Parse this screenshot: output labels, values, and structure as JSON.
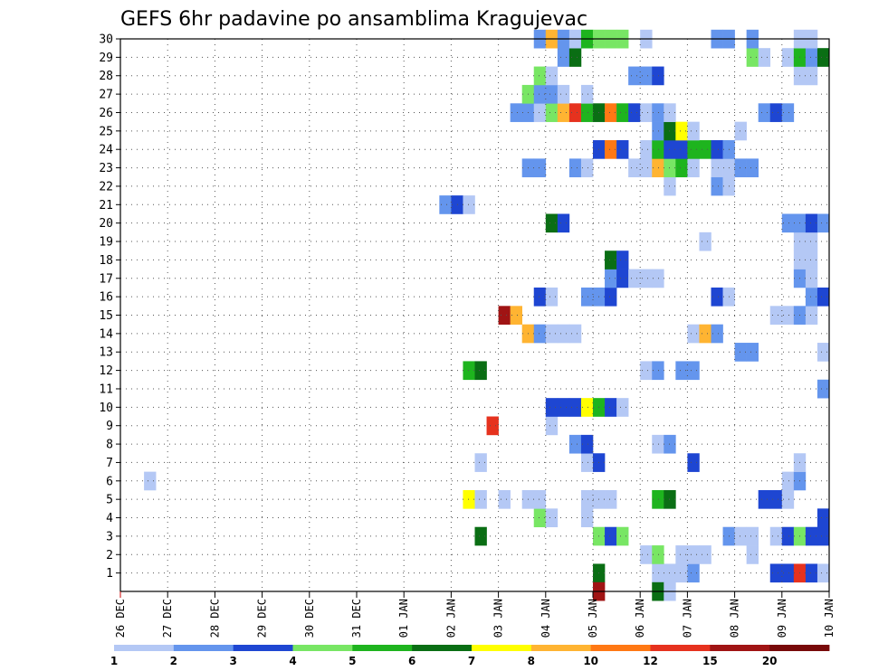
{
  "chart_data": {
    "type": "heatmap",
    "title": "GEFS 6hr padavine po ansamblima Kragujevac",
    "xlabel": "",
    "ylabel": "",
    "x_ticks": [
      "26 DEC",
      "27 DEC",
      "28 DEC",
      "29 DEC",
      "30 DEC",
      "31 DEC",
      "01 JAN",
      "02 JAN",
      "03 JAN",
      "04 JAN",
      "05 JAN",
      "06 JAN",
      "07 JAN",
      "08 JAN",
      "09 JAN",
      "10 JAN"
    ],
    "y_ticks": [
      "1",
      "2",
      "3",
      "4",
      "5",
      "6",
      "7",
      "8",
      "9",
      "10",
      "11",
      "12",
      "13",
      "14",
      "15",
      "16",
      "17",
      "18",
      "19",
      "20",
      "21",
      "22",
      "23",
      "24",
      "25",
      "26",
      "27",
      "28",
      "29",
      "30"
    ],
    "ylim": [
      0,
      30
    ],
    "x_steps_per_day": 4,
    "grid": true,
    "colorbar": {
      "labels": [
        "1",
        "2",
        "3",
        "4",
        "5",
        "6",
        "7",
        "8",
        "10",
        "12",
        "15",
        "20"
      ],
      "colors": [
        "#b4c8f5",
        "#6495ed",
        "#1e46d2",
        "#78e664",
        "#1eb41e",
        "#0a6e14",
        "#ffff00",
        "#ffb432",
        "#ff7814",
        "#e6321e",
        "#a01414",
        "#780a0a"
      ]
    },
    "cells": [
      [
        1,
        40,
        5
      ],
      [
        1,
        45,
        0
      ],
      [
        1,
        46,
        0
      ],
      [
        1,
        47,
        0
      ],
      [
        1,
        48,
        1
      ],
      [
        1,
        55,
        2
      ],
      [
        1,
        56,
        2
      ],
      [
        1,
        57,
        9
      ],
      [
        1,
        58,
        2
      ],
      [
        1,
        59,
        0
      ],
      [
        0,
        40,
        10
      ],
      [
        0,
        45,
        5
      ],
      [
        0,
        46,
        0
      ],
      [
        2,
        44,
        0
      ],
      [
        2,
        45,
        3
      ],
      [
        2,
        47,
        0
      ],
      [
        2,
        48,
        0
      ],
      [
        2,
        49,
        0
      ],
      [
        2,
        53,
        0
      ],
      [
        3,
        30,
        5
      ],
      [
        3,
        40,
        3
      ],
      [
        3,
        41,
        2
      ],
      [
        3,
        42,
        3
      ],
      [
        3,
        51,
        1
      ],
      [
        3,
        52,
        0
      ],
      [
        3,
        53,
        0
      ],
      [
        3,
        55,
        0
      ],
      [
        3,
        56,
        2
      ],
      [
        3,
        57,
        3
      ],
      [
        3,
        58,
        2
      ],
      [
        3,
        59,
        2
      ],
      [
        4,
        35,
        3
      ],
      [
        4,
        36,
        0
      ],
      [
        4,
        39,
        0
      ],
      [
        4,
        59,
        2
      ],
      [
        5,
        29,
        6
      ],
      [
        5,
        30,
        0
      ],
      [
        5,
        32,
        0
      ],
      [
        5,
        34,
        0
      ],
      [
        5,
        35,
        0
      ],
      [
        5,
        39,
        0
      ],
      [
        5,
        40,
        0
      ],
      [
        5,
        41,
        0
      ],
      [
        5,
        45,
        4
      ],
      [
        5,
        46,
        5
      ],
      [
        5,
        54,
        2
      ],
      [
        5,
        55,
        2
      ],
      [
        5,
        56,
        0
      ],
      [
        6,
        2,
        0
      ],
      [
        6,
        56,
        0
      ],
      [
        6,
        57,
        1
      ],
      [
        7,
        30,
        0
      ],
      [
        7,
        39,
        0
      ],
      [
        7,
        40,
        2
      ],
      [
        7,
        48,
        2
      ],
      [
        7,
        57,
        0
      ],
      [
        8,
        38,
        1
      ],
      [
        8,
        39,
        2
      ],
      [
        8,
        45,
        0
      ],
      [
        8,
        46,
        1
      ],
      [
        9,
        31,
        9
      ],
      [
        9,
        36,
        0
      ],
      [
        10,
        36,
        2
      ],
      [
        10,
        37,
        2
      ],
      [
        10,
        38,
        2
      ],
      [
        10,
        39,
        6
      ],
      [
        10,
        40,
        4
      ],
      [
        10,
        41,
        2
      ],
      [
        10,
        42,
        0
      ],
      [
        11,
        59,
        1
      ],
      [
        12,
        29,
        4
      ],
      [
        12,
        30,
        5
      ],
      [
        12,
        44,
        0
      ],
      [
        12,
        45,
        1
      ],
      [
        12,
        47,
        1
      ],
      [
        12,
        48,
        1
      ],
      [
        13,
        52,
        1
      ],
      [
        13,
        53,
        1
      ],
      [
        13,
        59,
        0
      ],
      [
        14,
        34,
        7
      ],
      [
        14,
        35,
        1
      ],
      [
        14,
        36,
        0
      ],
      [
        14,
        37,
        0
      ],
      [
        14,
        38,
        0
      ],
      [
        14,
        48,
        0
      ],
      [
        14,
        49,
        7
      ],
      [
        14,
        50,
        1
      ],
      [
        15,
        32,
        10
      ],
      [
        15,
        33,
        7
      ],
      [
        15,
        55,
        0
      ],
      [
        15,
        56,
        0
      ],
      [
        15,
        57,
        1
      ],
      [
        15,
        58,
        0
      ],
      [
        16,
        35,
        2
      ],
      [
        16,
        36,
        0
      ],
      [
        16,
        39,
        1
      ],
      [
        16,
        40,
        1
      ],
      [
        16,
        41,
        2
      ],
      [
        16,
        50,
        2
      ],
      [
        16,
        51,
        0
      ],
      [
        16,
        58,
        1
      ],
      [
        16,
        59,
        2
      ],
      [
        17,
        41,
        1
      ],
      [
        17,
        42,
        2
      ],
      [
        17,
        43,
        0
      ],
      [
        17,
        44,
        0
      ],
      [
        17,
        45,
        0
      ],
      [
        17,
        57,
        1
      ],
      [
        17,
        58,
        0
      ],
      [
        18,
        41,
        5
      ],
      [
        18,
        42,
        2
      ],
      [
        18,
        57,
        0
      ],
      [
        18,
        58,
        0
      ],
      [
        19,
        49,
        0
      ],
      [
        19,
        57,
        0
      ],
      [
        19,
        58,
        0
      ],
      [
        20,
        36,
        5
      ],
      [
        20,
        37,
        2
      ],
      [
        20,
        56,
        1
      ],
      [
        20,
        57,
        1
      ],
      [
        20,
        58,
        2
      ],
      [
        20,
        59,
        1
      ],
      [
        21,
        27,
        1
      ],
      [
        21,
        28,
        2
      ],
      [
        21,
        29,
        0
      ],
      [
        22,
        46,
        0
      ],
      [
        22,
        50,
        1
      ],
      [
        22,
        51,
        0
      ],
      [
        23,
        34,
        1
      ],
      [
        23,
        35,
        1
      ],
      [
        23,
        38,
        1
      ],
      [
        23,
        39,
        0
      ],
      [
        23,
        43,
        0
      ],
      [
        23,
        44,
        0
      ],
      [
        23,
        45,
        7
      ],
      [
        23,
        46,
        3
      ],
      [
        23,
        47,
        4
      ],
      [
        23,
        48,
        0
      ],
      [
        23,
        50,
        0
      ],
      [
        23,
        51,
        0
      ],
      [
        23,
        52,
        1
      ],
      [
        23,
        53,
        1
      ],
      [
        24,
        40,
        2
      ],
      [
        24,
        41,
        8
      ],
      [
        24,
        42,
        2
      ],
      [
        24,
        44,
        0
      ],
      [
        24,
        45,
        4
      ],
      [
        24,
        46,
        2
      ],
      [
        24,
        47,
        2
      ],
      [
        24,
        48,
        4
      ],
      [
        24,
        49,
        4
      ],
      [
        24,
        50,
        2
      ],
      [
        24,
        51,
        1
      ],
      [
        25,
        45,
        1
      ],
      [
        25,
        46,
        5
      ],
      [
        25,
        47,
        6
      ],
      [
        25,
        48,
        0
      ],
      [
        25,
        52,
        0
      ],
      [
        26,
        33,
        1
      ],
      [
        26,
        34,
        1
      ],
      [
        26,
        35,
        0
      ],
      [
        26,
        36,
        3
      ],
      [
        26,
        37,
        7
      ],
      [
        26,
        38,
        9
      ],
      [
        26,
        39,
        4
      ],
      [
        26,
        40,
        5
      ],
      [
        26,
        41,
        8
      ],
      [
        26,
        42,
        4
      ],
      [
        26,
        43,
        2
      ],
      [
        26,
        44,
        0
      ],
      [
        26,
        45,
        1
      ],
      [
        26,
        46,
        0
      ],
      [
        26,
        54,
        1
      ],
      [
        26,
        55,
        2
      ],
      [
        26,
        56,
        1
      ],
      [
        27,
        34,
        3
      ],
      [
        27,
        35,
        1
      ],
      [
        27,
        36,
        1
      ],
      [
        27,
        37,
        0
      ],
      [
        27,
        39,
        0
      ],
      [
        28,
        35,
        3
      ],
      [
        28,
        36,
        0
      ],
      [
        28,
        43,
        1
      ],
      [
        28,
        44,
        1
      ],
      [
        28,
        45,
        2
      ],
      [
        28,
        57,
        0
      ],
      [
        28,
        58,
        0
      ],
      [
        29,
        37,
        1
      ],
      [
        29,
        38,
        5
      ],
      [
        29,
        53,
        3
      ],
      [
        29,
        54,
        0
      ],
      [
        29,
        56,
        0
      ],
      [
        29,
        57,
        4
      ],
      [
        29,
        58,
        1
      ],
      [
        29,
        59,
        5
      ],
      [
        30,
        35,
        1
      ],
      [
        30,
        36,
        7
      ],
      [
        30,
        37,
        1
      ],
      [
        30,
        38,
        0
      ],
      [
        30,
        39,
        4
      ],
      [
        30,
        40,
        3
      ],
      [
        30,
        41,
        3
      ],
      [
        30,
        42,
        3
      ],
      [
        30,
        44,
        0
      ],
      [
        30,
        50,
        1
      ],
      [
        30,
        51,
        1
      ],
      [
        30,
        53,
        1
      ],
      [
        30,
        57,
        0
      ],
      [
        30,
        58,
        0
      ]
    ]
  }
}
